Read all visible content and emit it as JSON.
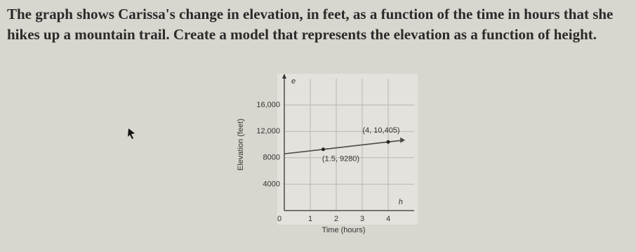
{
  "question": "The graph shows Carissa's change in elevation, in feet, as a function of the time in hours that she hikes up a mountain trail. Create a model that represents the elevation as a function of height.",
  "chart_data": {
    "type": "line",
    "x_label": "Time (hours)",
    "y_label": "Elevation (feet)",
    "x_axis_var": "h",
    "y_axis_var": "e",
    "x": [
      0,
      1.5,
      4,
      4.6
    ],
    "series": [
      {
        "values": [
          8605,
          9280,
          10405,
          10675
        ],
        "color": "#4a4a4a"
      }
    ],
    "points": [
      {
        "x": 1.5,
        "y": 9280,
        "label": "(1.5, 9280)"
      },
      {
        "x": 4,
        "y": 10405,
        "label": "(4, 10,405)"
      }
    ],
    "xlim": [
      0,
      5
    ],
    "ylim": [
      0,
      20000
    ],
    "xticks": [
      0,
      1,
      2,
      3,
      4
    ],
    "yticks": [
      4000,
      8000,
      {
        "value": 12000,
        "label": "12,000"
      },
      {
        "value": 16000,
        "label": "16,000"
      }
    ],
    "grid": true
  }
}
